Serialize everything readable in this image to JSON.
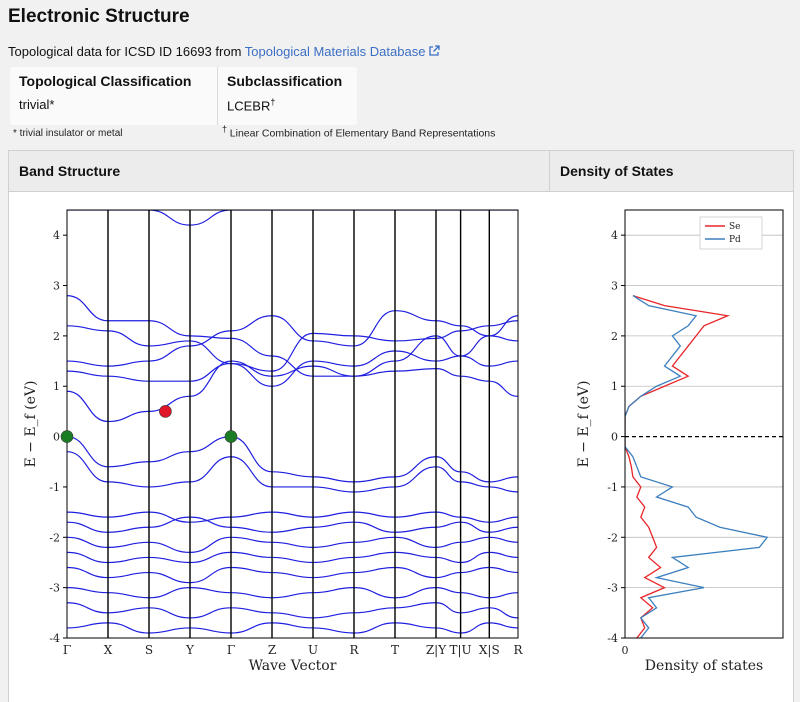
{
  "section_title": "Electronic Structure",
  "intro": {
    "prefix": "Topological data for ICSD ID 16693 from ",
    "link_text": "Topological Materials Database"
  },
  "classification": {
    "topological_header": "Topological Classification",
    "topological_value": "trivial*",
    "sub_header": "Subclassification",
    "sub_value": "LCEBR",
    "sub_mark": "†"
  },
  "notes": {
    "trivial_note": "* trivial insulator or metal",
    "dagger": "†",
    "lcebr_note": "Linear Combination of Elementary Band Representations"
  },
  "panels": {
    "band_title": "Band Structure",
    "dos_title": "Density of States"
  },
  "colors": {
    "band": "#1f1fe0",
    "se": "#e8262a",
    "pd": "#3c7fbf",
    "link": "#3b6ec5",
    "cbm": "#e0142a",
    "vbm": "#1a7d23"
  },
  "chart_data": [
    {
      "type": "line",
      "name_ref": "band-structure",
      "xlabel": "Wave Vector",
      "ylabel": "E − E_f (eV)",
      "ylim": [
        -4,
        4.5
      ],
      "yticks": [
        -4,
        -3,
        -2,
        -1,
        0,
        1,
        2,
        3,
        4
      ],
      "kpath_labels": [
        "Γ",
        "X",
        "S",
        "Y",
        "Γ",
        "Z",
        "U",
        "R",
        "T",
        "Z|Y",
        "T|U",
        "X|S",
        "R"
      ],
      "kpath_positions": [
        0,
        1,
        2,
        3,
        4,
        5,
        6,
        7,
        8,
        9,
        9.6,
        10.3,
        11
      ],
      "markers": [
        {
          "k": 0,
          "energy": 0.0,
          "color": "#1a7d23",
          "kind": "VBM"
        },
        {
          "k": 4,
          "energy": 0.0,
          "color": "#1a7d23",
          "kind": "VBM"
        },
        {
          "k": 2.4,
          "energy": 0.5,
          "color": "#e0142a",
          "kind": "CBM"
        }
      ],
      "bands": [
        [
          4.5,
          4.5,
          4.5,
          4.2,
          4.5,
          4.5,
          4.5,
          4.5,
          4.5,
          4.5,
          4.5,
          4.5,
          4.5
        ],
        [
          2.8,
          2.3,
          2.3,
          2.0,
          1.95,
          1.6,
          1.2,
          1.2,
          1.5,
          2.0,
          1.6,
          2.0,
          2.4
        ],
        [
          2.2,
          2.1,
          1.8,
          1.9,
          1.45,
          1.3,
          2.05,
          2.0,
          1.9,
          1.95,
          2.1,
          2.2,
          2.3
        ],
        [
          1.5,
          1.4,
          1.5,
          1.8,
          2.1,
          2.4,
          1.9,
          1.8,
          2.5,
          2.3,
          2.2,
          2.0,
          1.9
        ],
        [
          1.3,
          1.2,
          1.1,
          1.1,
          1.45,
          1.0,
          1.5,
          1.4,
          1.7,
          1.5,
          1.6,
          1.4,
          1.5
        ],
        [
          0.9,
          0.3,
          0.5,
          0.8,
          1.5,
          1.2,
          1.4,
          1.2,
          1.3,
          1.35,
          1.2,
          1.1,
          0.8
        ],
        [
          0.0,
          -0.6,
          -0.5,
          -0.3,
          0.0,
          -0.7,
          -0.8,
          -0.9,
          -0.8,
          -0.4,
          -0.7,
          -0.9,
          -0.8
        ],
        [
          -0.3,
          -0.9,
          -1.0,
          -0.9,
          -0.4,
          -1.0,
          -1.0,
          -1.1,
          -1.0,
          -0.6,
          -0.9,
          -1.0,
          -1.1
        ],
        [
          -1.5,
          -1.6,
          -1.5,
          -1.7,
          -1.6,
          -1.5,
          -1.6,
          -1.5,
          -1.6,
          -1.5,
          -1.6,
          -1.7,
          -1.6
        ],
        [
          -1.7,
          -1.9,
          -1.8,
          -1.6,
          -1.8,
          -1.9,
          -1.8,
          -1.7,
          -1.9,
          -1.8,
          -1.7,
          -1.9,
          -1.8
        ],
        [
          -2.0,
          -2.2,
          -2.1,
          -2.3,
          -2.0,
          -2.1,
          -2.2,
          -2.1,
          -2.0,
          -2.2,
          -2.1,
          -2.0,
          -2.1
        ],
        [
          -2.3,
          -2.5,
          -2.4,
          -2.5,
          -2.3,
          -2.4,
          -2.5,
          -2.4,
          -2.3,
          -2.4,
          -2.5,
          -2.3,
          -2.4
        ],
        [
          -2.6,
          -2.8,
          -2.7,
          -2.9,
          -2.6,
          -2.7,
          -2.8,
          -2.7,
          -2.6,
          -2.8,
          -2.7,
          -2.6,
          -2.7
        ],
        [
          -3.0,
          -3.1,
          -3.2,
          -3.0,
          -3.1,
          -3.2,
          -3.1,
          -3.0,
          -3.2,
          -3.0,
          -3.1,
          -3.2,
          -3.1
        ],
        [
          -3.3,
          -3.5,
          -3.4,
          -3.6,
          -3.4,
          -3.5,
          -3.6,
          -3.5,
          -3.4,
          -3.3,
          -3.5,
          -3.4,
          -3.6
        ],
        [
          -3.8,
          -3.7,
          -3.9,
          -3.8,
          -3.9,
          -3.7,
          -3.8,
          -3.9,
          -3.7,
          -3.8,
          -3.9,
          -3.7,
          -3.8
        ]
      ]
    },
    {
      "type": "line",
      "name_ref": "density-of-states",
      "xlabel": "Density of states",
      "ylabel": "E − E_f (eV)",
      "ylim": [
        -4,
        4.5
      ],
      "yticks": [
        -4,
        -3,
        -2,
        -1,
        0,
        1,
        2,
        3,
        4
      ],
      "xticks": [
        0
      ],
      "legend": "top-right",
      "series": [
        {
          "name": "Se",
          "energy": [
            -4,
            -3.8,
            -3.6,
            -3.4,
            -3.2,
            -3,
            -2.8,
            -2.6,
            -2.4,
            -2.2,
            -2,
            -1.8,
            -1.6,
            -1.4,
            -1.2,
            -1,
            -0.8,
            -0.6,
            -0.4,
            -0.2,
            0,
            0.2,
            0.4,
            0.6,
            0.8,
            1,
            1.2,
            1.4,
            1.6,
            1.8,
            2,
            2.2,
            2.4,
            2.6,
            2.8
          ],
          "dos": [
            0.15,
            0.25,
            0.2,
            0.35,
            0.2,
            0.5,
            0.25,
            0.45,
            0.3,
            0.4,
            0.35,
            0.3,
            0.2,
            0.25,
            0.15,
            0.2,
            0.1,
            0.08,
            0.05,
            0,
            0,
            0,
            0,
            0.05,
            0.2,
            0.5,
            0.8,
            0.6,
            0.7,
            0.8,
            0.9,
            1.0,
            1.3,
            0.5,
            0.1
          ]
        },
        {
          "name": "Pd",
          "energy": [
            -4,
            -3.8,
            -3.6,
            -3.4,
            -3.2,
            -3,
            -2.8,
            -2.6,
            -2.4,
            -2.2,
            -2,
            -1.8,
            -1.6,
            -1.4,
            -1.2,
            -1,
            -0.8,
            -0.6,
            -0.4,
            -0.2,
            0,
            0.2,
            0.4,
            0.6,
            0.8,
            1,
            1.2,
            1.4,
            1.6,
            1.8,
            2,
            2.2,
            2.4,
            2.6,
            2.8
          ],
          "dos": [
            0.2,
            0.3,
            0.2,
            0.4,
            0.3,
            1.0,
            0.4,
            0.8,
            0.6,
            1.7,
            1.8,
            1.2,
            0.9,
            0.8,
            0.4,
            0.6,
            0.2,
            0.15,
            0.1,
            0,
            0,
            0,
            0,
            0.05,
            0.2,
            0.4,
            0.7,
            0.5,
            0.6,
            0.7,
            0.6,
            0.8,
            0.9,
            0.3,
            0.1
          ]
        }
      ]
    }
  ]
}
